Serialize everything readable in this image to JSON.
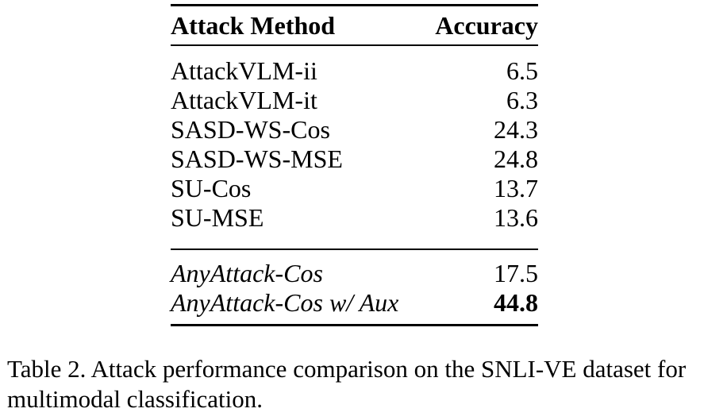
{
  "page": {
    "background_color": "#ffffff",
    "text_color": "#000000",
    "rule_color": "#000000"
  },
  "table": {
    "columns": [
      "Attack Method",
      "Accuracy"
    ],
    "rows": [
      {
        "method": "AttackVLM-ii",
        "accuracy": "6.5"
      },
      {
        "method": "AttackVLM-it",
        "accuracy": "6.3"
      },
      {
        "method": "SASD-WS-Cos",
        "accuracy": "24.3"
      },
      {
        "method": "SASD-WS-MSE",
        "accuracy": "24.8"
      },
      {
        "method": "SU-Cos",
        "accuracy": "13.7"
      },
      {
        "method": "SU-MSE",
        "accuracy": "13.6"
      }
    ],
    "group_rows": [
      {
        "method": "AnyAttack-Cos",
        "accuracy": "17.5",
        "bold_accuracy": false
      },
      {
        "method": "AnyAttack-Cos w/ Aux",
        "accuracy": "44.8",
        "bold_accuracy": true
      }
    ]
  },
  "caption": "Table 2. Attack performance comparison on the SNLI-VE dataset for multimodal classification."
}
